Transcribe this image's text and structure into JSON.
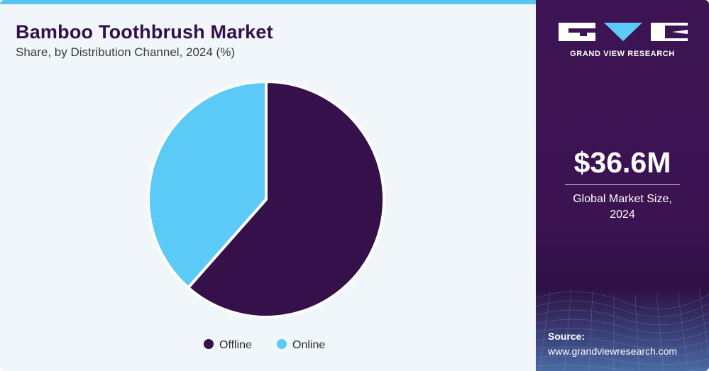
{
  "header": {
    "title": "Bamboo Toothbrush Market",
    "subtitle": "Share, by Distribution Channel, 2024 (%)"
  },
  "colors": {
    "offline": "#35104a",
    "online": "#5ccaf6",
    "panel": "#3c1453",
    "accent": "#59c6f1",
    "title": "#34104a"
  },
  "chart_data": {
    "type": "pie",
    "title": "Bamboo Toothbrush Market",
    "subtitle": "Share, by Distribution Channel, 2024 (%)",
    "categories": [
      "Offline",
      "Online"
    ],
    "values": [
      61.5,
      38.5
    ],
    "colors": [
      "#35104a",
      "#5ccaf6"
    ],
    "start_angle_deg": 0,
    "direction": "clockwise",
    "legend": {
      "position": "bottom",
      "entries": [
        "Offline",
        "Online"
      ]
    }
  },
  "sidebar": {
    "logo_icon": "grand-view-research-logo",
    "brand": "GRAND VIEW RESEARCH",
    "market_value": "$36.6M",
    "market_caption_line1": "Global Market Size,",
    "market_caption_line2": "2024",
    "source_label": "Source:",
    "source_url": "www.grandviewresearch.com"
  }
}
